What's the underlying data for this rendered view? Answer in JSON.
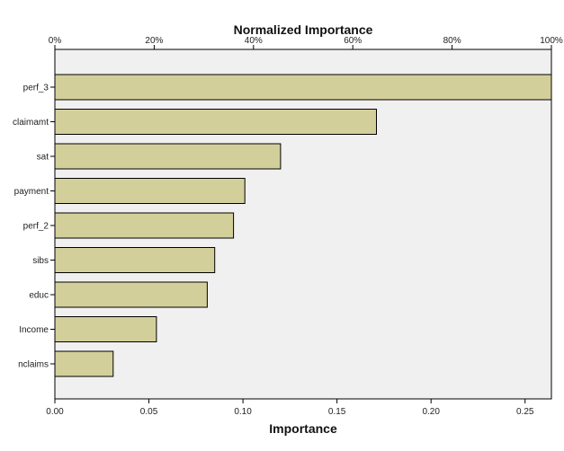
{
  "chart_data": {
    "type": "bar",
    "orientation": "horizontal",
    "categories": [
      "perf_3",
      "claimamt",
      "sat",
      "payment",
      "perf_2",
      "sibs",
      "educ",
      "Income",
      "nclaims"
    ],
    "values": [
      0.264,
      0.171,
      0.12,
      0.101,
      0.095,
      0.085,
      0.081,
      0.054,
      0.031
    ],
    "xlabel": "Importance",
    "xlim": [
      0,
      0.264
    ],
    "xticks": [
      0,
      0.05,
      0.1,
      0.15,
      0.2,
      0.25
    ],
    "xtick_labels": [
      "0.00",
      "0.05",
      "0.10",
      "0.15",
      "0.20",
      "0.25"
    ],
    "secondary_xlabel": "Normalized Importance",
    "secondary_xlim": [
      0,
      100
    ],
    "secondary_xticks": [
      0,
      20,
      40,
      60,
      80,
      100
    ],
    "secondary_xtick_labels": [
      "0%",
      "20%",
      "40%",
      "60%",
      "80%",
      "100%"
    ],
    "grid": false,
    "colors": {
      "bar_fill": "#d3cf9b",
      "bar_stroke": "#000000",
      "plot_background": "#f0f0f0"
    }
  }
}
